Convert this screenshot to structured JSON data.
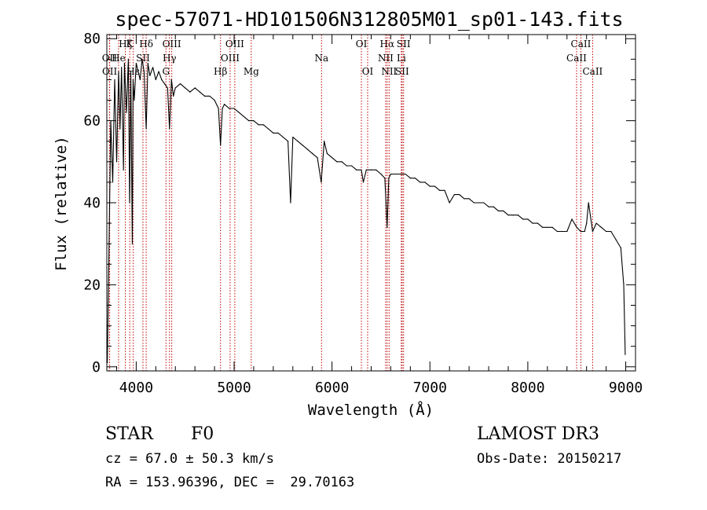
{
  "chart_data": {
    "type": "line",
    "title": "spec-57071-HD101506N312805M01_sp01-143.fits",
    "xlabel": "Wavelength (Å)",
    "ylabel": "Flux (relative)",
    "xlim": [
      3700,
      9100
    ],
    "ylim": [
      -1,
      81
    ],
    "x_ticks": [
      4000,
      5000,
      6000,
      7000,
      8000,
      9000
    ],
    "y_ticks": [
      0,
      20,
      40,
      60,
      80
    ],
    "grid": false,
    "series": [
      {
        "name": "spectrum",
        "x": [
          3705,
          3720,
          3740,
          3760,
          3780,
          3800,
          3820,
          3835,
          3850,
          3870,
          3880,
          3900,
          3920,
          3933,
          3945,
          3960,
          3968,
          3980,
          4000,
          4020,
          4040,
          4060,
          4080,
          4102,
          4120,
          4140,
          4170,
          4200,
          4230,
          4260,
          4290,
          4320,
          4340,
          4360,
          4380,
          4400,
          4450,
          4500,
          4550,
          4600,
          4650,
          4700,
          4750,
          4800,
          4840,
          4861,
          4880,
          4900,
          4950,
          5000,
          5050,
          5100,
          5150,
          5200,
          5250,
          5300,
          5350,
          5400,
          5450,
          5500,
          5550,
          5577,
          5600,
          5650,
          5700,
          5750,
          5800,
          5850,
          5890,
          5920,
          5950,
          6000,
          6050,
          6100,
          6150,
          6200,
          6250,
          6300,
          6320,
          6350,
          6400,
          6450,
          6500,
          6540,
          6563,
          6580,
          6600,
          6650,
          6700,
          6750,
          6800,
          6850,
          6900,
          6950,
          7000,
          7050,
          7100,
          7150,
          7200,
          7250,
          7300,
          7350,
          7400,
          7450,
          7500,
          7550,
          7600,
          7650,
          7700,
          7750,
          7800,
          7850,
          7900,
          7950,
          8000,
          8050,
          8100,
          8150,
          8200,
          8250,
          8300,
          8350,
          8400,
          8450,
          8500,
          8540,
          8580,
          8600,
          8620,
          8662,
          8700,
          8750,
          8800,
          8850,
          8900,
          8950,
          8980,
          8995
        ],
        "values": [
          1,
          25,
          60,
          45,
          70,
          50,
          72,
          58,
          73,
          48,
          74,
          62,
          75,
          40,
          72,
          30,
          70,
          65,
          74,
          72,
          70,
          75,
          72,
          58,
          74,
          71,
          73,
          70,
          72,
          70,
          69,
          68,
          58,
          70,
          66,
          68,
          69,
          68,
          67,
          68,
          67,
          66,
          66,
          65,
          63,
          54,
          63,
          64,
          63,
          63,
          62,
          61,
          60,
          60,
          59,
          59,
          58,
          57,
          57,
          56,
          55,
          40,
          56,
          55,
          54,
          53,
          52,
          51,
          45,
          55,
          52,
          51,
          50,
          50,
          49,
          49,
          48,
          48,
          45,
          48,
          48,
          48,
          47,
          46,
          34,
          46,
          47,
          47,
          47,
          47,
          46,
          46,
          45,
          45,
          44,
          44,
          43,
          43,
          40,
          42,
          42,
          41,
          41,
          40,
          40,
          40,
          39,
          39,
          38,
          38,
          37,
          37,
          37,
          36,
          36,
          35,
          35,
          34,
          34,
          34,
          33,
          33,
          33,
          36,
          34,
          33,
          33,
          35,
          40,
          33,
          35,
          34,
          33,
          33,
          31,
          29,
          20,
          3
        ]
      }
    ],
    "spectral_lines": [
      {
        "label": "Hζ",
        "x": 3889,
        "row": 0
      },
      {
        "label": "K",
        "x": 3934,
        "row": 0
      },
      {
        "label": "Hδ",
        "x": 4102,
        "row": 0
      },
      {
        "label": "OIII",
        "x": 4363,
        "row": 0
      },
      {
        "label": "OIII",
        "x": 5007,
        "row": 0
      },
      {
        "label": "OI",
        "x": 6300,
        "row": 0
      },
      {
        "label": "Hα",
        "x": 6563,
        "row": 0
      },
      {
        "label": "SII",
        "x": 6731,
        "row": 0
      },
      {
        "label": "CaII",
        "x": 8542,
        "row": 0
      },
      {
        "label": "OII",
        "x": 3727,
        "row": 1
      },
      {
        "label": "He",
        "x": 3820,
        "row": 1
      },
      {
        "label": "SII",
        "x": 4069,
        "row": 1
      },
      {
        "label": "Hγ",
        "x": 4340,
        "row": 1
      },
      {
        "label": "OIII",
        "x": 4959,
        "row": 1
      },
      {
        "label": "Na",
        "x": 5893,
        "row": 1
      },
      {
        "label": "NII",
        "x": 6548,
        "row": 1
      },
      {
        "label": "Li",
        "x": 6708,
        "row": 1
      },
      {
        "label": "CaII",
        "x": 8498,
        "row": 1
      },
      {
        "label": "OII",
        "x": 3729,
        "row": 2
      },
      {
        "label": "Hε",
        "x": 3970,
        "row": 2
      },
      {
        "label": "G",
        "x": 4304,
        "row": 2
      },
      {
        "label": "Hβ",
        "x": 4861,
        "row": 2
      },
      {
        "label": "Mg",
        "x": 5175,
        "row": 2
      },
      {
        "label": "OI",
        "x": 6364,
        "row": 2
      },
      {
        "label": "NII",
        "x": 6583,
        "row": 2
      },
      {
        "label": "SII",
        "x": 6716,
        "row": 2
      },
      {
        "label": "CaII",
        "x": 8662,
        "row": 2
      }
    ]
  },
  "info": {
    "object_type": "STAR",
    "subclass": "F0",
    "survey": "LAMOST DR3",
    "cz": "cz = 67.0 ± 50.3 km/s",
    "obs_date": "Obs-Date: 20150217",
    "coords": "RA = 153.96396, DEC =  29.70163"
  },
  "colors": {
    "line_marker": "#c00000",
    "spectrum": "#000000"
  }
}
